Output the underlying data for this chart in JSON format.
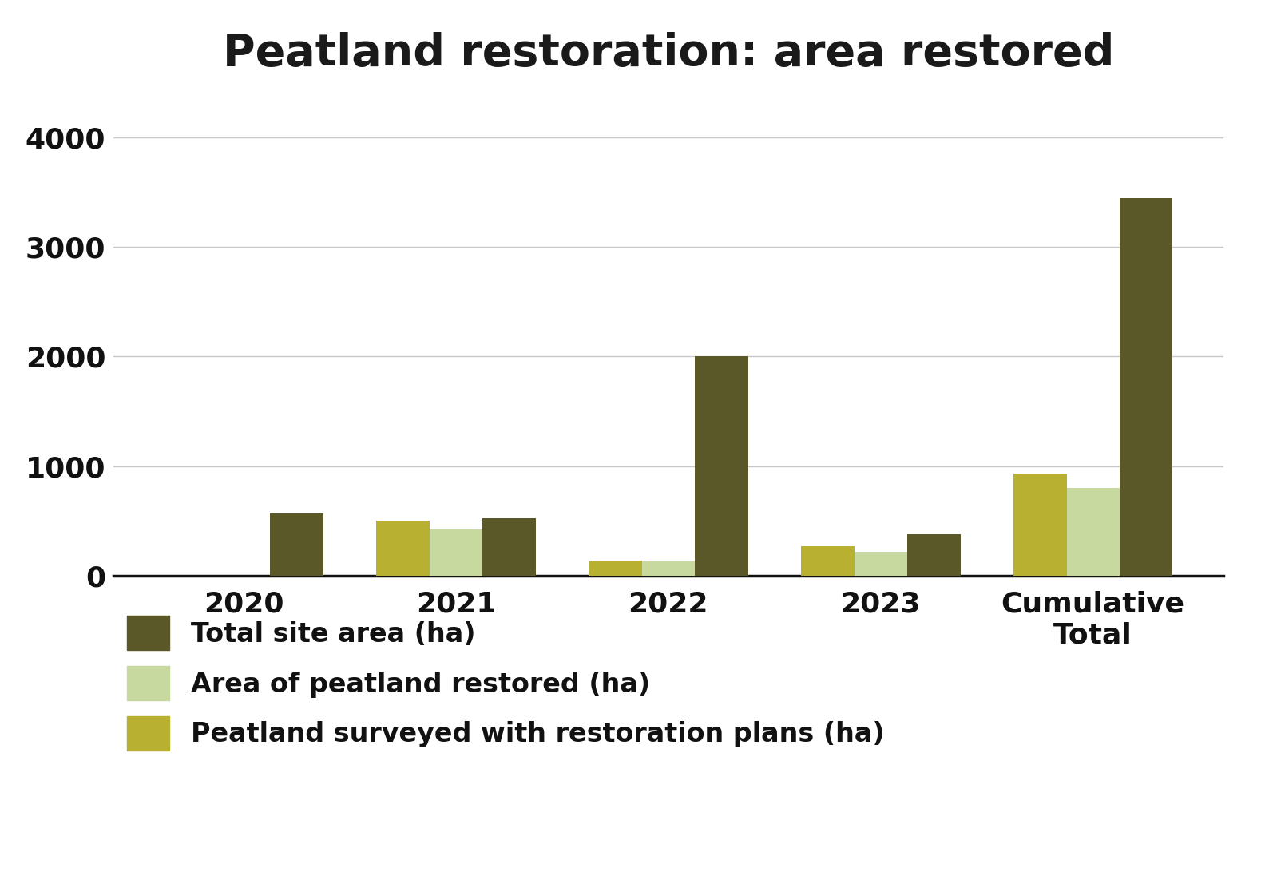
{
  "title": "Peatland restoration: area restored",
  "categories": [
    "2020",
    "2021",
    "2022",
    "2023",
    "Cumulative\nTotal"
  ],
  "series": [
    {
      "name": "Total site area (ha)",
      "values": [
        570,
        520,
        2000,
        380,
        3450
      ],
      "color": "#5a5728"
    },
    {
      "name": "Area of peatland restored (ha)",
      "values": [
        0,
        420,
        130,
        220,
        800
      ],
      "color": "#c8d9a0"
    },
    {
      "name": "Peatland surveyed with restoration plans (ha)",
      "values": [
        0,
        500,
        140,
        270,
        930
      ],
      "color": "#b8b030"
    }
  ],
  "bar_order": [
    2,
    1,
    0
  ],
  "ylim": [
    0,
    4300
  ],
  "yticks": [
    0,
    1000,
    2000,
    3000,
    4000
  ],
  "bar_width": 0.25,
  "background_color": "#ffffff",
  "title_fontsize": 40,
  "tick_fontsize": 26,
  "legend_fontsize": 24,
  "grid_color": "#c8c8c8",
  "axis_color": "#111111",
  "title_color": "#1a1a1a"
}
